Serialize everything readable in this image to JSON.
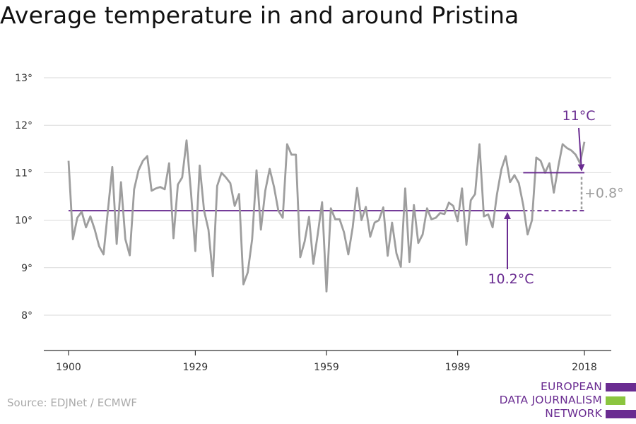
{
  "title": "Average temperature in and around Pristina",
  "source": "Source: EDJNet / ECMWF",
  "logo": {
    "lines": [
      "EUROPEAN",
      "DATA JOURNALISM",
      "NETWORK"
    ],
    "colors": [
      "#6a2c91",
      "#8bc53f",
      "#6a2c91"
    ]
  },
  "colors": {
    "series": "#9e9e9e",
    "baseline": "#6a2c91",
    "annotation": "#6a2c91",
    "diff": "#9e9e9e",
    "grid": "#d9d9d9",
    "axis": "#333333"
  },
  "chart_data": {
    "type": "line",
    "title": "Average temperature in and around Pristina",
    "xlabel": "",
    "ylabel": "",
    "xlim": [
      1900,
      2018
    ],
    "ylim": [
      7.3,
      13.3
    ],
    "x_ticks": [
      1900,
      1929,
      1959,
      1989,
      2018
    ],
    "y_ticks": [
      8,
      9,
      10,
      11,
      12,
      13
    ],
    "y_tick_labels": [
      "8°",
      "9°",
      "10°",
      "11°",
      "12°",
      "13°"
    ],
    "grid": true,
    "x": [
      1900,
      1901,
      1902,
      1903,
      1904,
      1905,
      1906,
      1907,
      1908,
      1909,
      1910,
      1911,
      1912,
      1913,
      1914,
      1915,
      1916,
      1917,
      1918,
      1919,
      1920,
      1921,
      1922,
      1923,
      1924,
      1925,
      1926,
      1927,
      1928,
      1929,
      1930,
      1931,
      1932,
      1933,
      1934,
      1935,
      1936,
      1937,
      1938,
      1939,
      1940,
      1941,
      1942,
      1943,
      1944,
      1945,
      1946,
      1947,
      1948,
      1949,
      1950,
      1951,
      1952,
      1953,
      1954,
      1955,
      1956,
      1957,
      1958,
      1959,
      1960,
      1961,
      1962,
      1963,
      1964,
      1965,
      1966,
      1967,
      1968,
      1969,
      1970,
      1971,
      1972,
      1973,
      1974,
      1975,
      1976,
      1977,
      1978,
      1979,
      1980,
      1981,
      1982,
      1983,
      1984,
      1985,
      1986,
      1987,
      1988,
      1989,
      1990,
      1991,
      1992,
      1993,
      1994,
      1995,
      1996,
      1997,
      1998,
      1999,
      2000,
      2001,
      2002,
      2003,
      2004,
      2005,
      2006,
      2007,
      2008,
      2009,
      2010,
      2011,
      2012,
      2013,
      2014,
      2015,
      2016,
      2017,
      2018
    ],
    "series": [
      {
        "values": [
          11.25,
          9.6,
          10.05,
          10.18,
          9.85,
          10.08,
          9.8,
          9.45,
          9.28,
          10.2,
          11.12,
          9.5,
          10.8,
          9.6,
          9.26,
          10.65,
          11.05,
          11.25,
          11.35,
          10.62,
          10.67,
          10.7,
          10.65,
          11.2,
          9.62,
          10.75,
          10.9,
          11.68,
          10.6,
          9.35,
          11.15,
          10.2,
          9.8,
          8.82,
          10.72,
          11.0,
          10.9,
          10.78,
          10.3,
          10.55,
          8.65,
          8.9,
          9.6,
          11.05,
          9.8,
          10.62,
          11.08,
          10.7,
          10.2,
          10.05,
          11.6,
          11.38,
          11.38,
          9.22,
          9.55,
          10.07,
          9.08,
          9.7,
          10.38,
          8.5,
          10.25,
          10.02,
          10.02,
          9.75,
          9.28,
          9.85,
          10.68,
          10.0,
          10.28,
          9.65,
          9.95,
          10.0,
          10.27,
          9.25,
          9.95,
          9.3,
          9.02,
          10.67,
          9.12,
          10.32,
          9.52,
          9.7,
          10.25,
          10.02,
          10.05,
          10.15,
          10.13,
          10.37,
          10.3,
          9.98,
          10.67,
          9.48,
          10.42,
          10.55,
          11.6,
          10.08,
          10.12,
          9.85,
          10.55,
          11.07,
          11.35,
          10.8,
          10.95,
          10.78,
          10.32,
          9.7,
          10.0,
          11.32,
          11.25,
          11.0,
          11.2,
          10.58,
          11.12,
          11.6,
          11.52,
          11.47,
          11.38,
          11.2,
          11.65
        ]
      }
    ],
    "annotations": {
      "baseline": {
        "value": 10.2,
        "x_start": 1900,
        "x_end": 2004,
        "dashed_to": 2018,
        "label": "10.2°C"
      },
      "recent": {
        "value": 11.0,
        "x_start": 2004,
        "x_end": 2018,
        "label": "11°C"
      },
      "difference_label": "+0.8°"
    }
  }
}
